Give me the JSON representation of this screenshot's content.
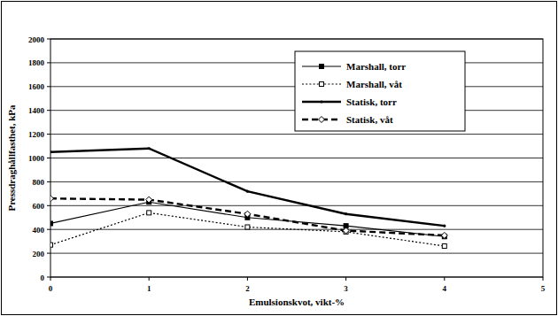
{
  "chart_data": {
    "type": "line",
    "x_label": "Emulsionskvot, vikt-%",
    "y_label": "Pressdraghållfasthet, kPa",
    "x": [
      0,
      1,
      2,
      3,
      4
    ],
    "xlim": [
      0,
      5
    ],
    "xticks": [
      0,
      1,
      2,
      3,
      4,
      5
    ],
    "ylim": [
      0,
      2000
    ],
    "yticks": [
      0,
      200,
      400,
      600,
      800,
      1000,
      1200,
      1400,
      1600,
      1800,
      2000
    ],
    "grid": true,
    "legend": "upper right",
    "series": [
      {
        "name": "Marshall, torr",
        "color": "#000000",
        "marker": "square",
        "line_style": "solid",
        "values": [
          450,
          630,
          500,
          430,
          340
        ]
      },
      {
        "name": "Marshall, våt",
        "color": "#000000",
        "marker": "square-open",
        "line_style": "dotted",
        "values": [
          270,
          540,
          420,
          380,
          260
        ]
      },
      {
        "name": "Statisk, torr",
        "color": "#000000",
        "marker": "dot",
        "line_style": "solid",
        "values": [
          1050,
          1080,
          720,
          530,
          430
        ]
      },
      {
        "name": "Statisk, våt",
        "color": "#000000",
        "marker": "diamond-open",
        "line_style": "dashed",
        "values": [
          660,
          650,
          530,
          390,
          350
        ]
      }
    ]
  }
}
